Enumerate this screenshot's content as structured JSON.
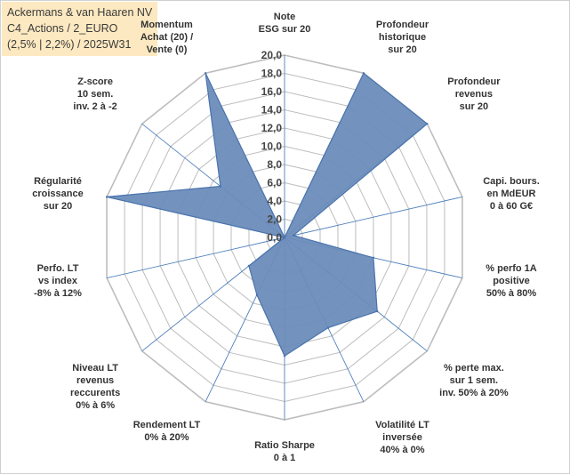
{
  "title": {
    "line1": "Ackermans & van Haaren NV",
    "line2": "C4_Actions / 2_EURO",
    "line3": "(2,5% | 2,2%) / 2025W31"
  },
  "chart_data": {
    "type": "radar",
    "rmax": 20,
    "rstep": 2,
    "tick_labels": [
      "0,0",
      "2,0",
      "4,0",
      "6,0",
      "8,0",
      "10,0",
      "12,0",
      "14,0",
      "16,0",
      "18,0",
      "20,0"
    ],
    "axes": [
      [
        "Note",
        "ESG sur 20"
      ],
      [
        "Profondeur",
        "historique",
        "sur 20"
      ],
      [
        "Profondeur",
        "revenus",
        "sur 20"
      ],
      [
        "Capi. bours.",
        "en MdEUR",
        "0 à 60 G€"
      ],
      [
        "% perfo 1A",
        "positive",
        "50% à 80%"
      ],
      [
        "% perte max.",
        "sur 1 sem.",
        "inv. 50% à 20%"
      ],
      [
        "Volatilité LT",
        "inversée",
        "40% à 0%"
      ],
      [
        "Ratio Sharpe",
        "0 à 1"
      ],
      [
        "Rendement LT",
        "0% à 20%"
      ],
      [
        "Niveau LT",
        "revenus",
        "reccurents",
        "0% à 6%"
      ],
      [
        "Perfo. LT",
        "vs index",
        "-8% à 12%"
      ],
      [
        "Régularité",
        "croissance",
        "sur 20"
      ],
      [
        "Z-score",
        "10 sem.",
        "inv. 2 à -2"
      ],
      [
        "Momentum",
        "Achat (20) /",
        "Vente (0)"
      ]
    ],
    "values": [
      0,
      20,
      20,
      1,
      10,
      13,
      11,
      13,
      7,
      5,
      0,
      20,
      9,
      20
    ],
    "fill_color": "#6b8cba",
    "stroke_color": "#4a74ad",
    "grid_color": "#bdbdbd",
    "spoke_color": "#4f81bd"
  }
}
